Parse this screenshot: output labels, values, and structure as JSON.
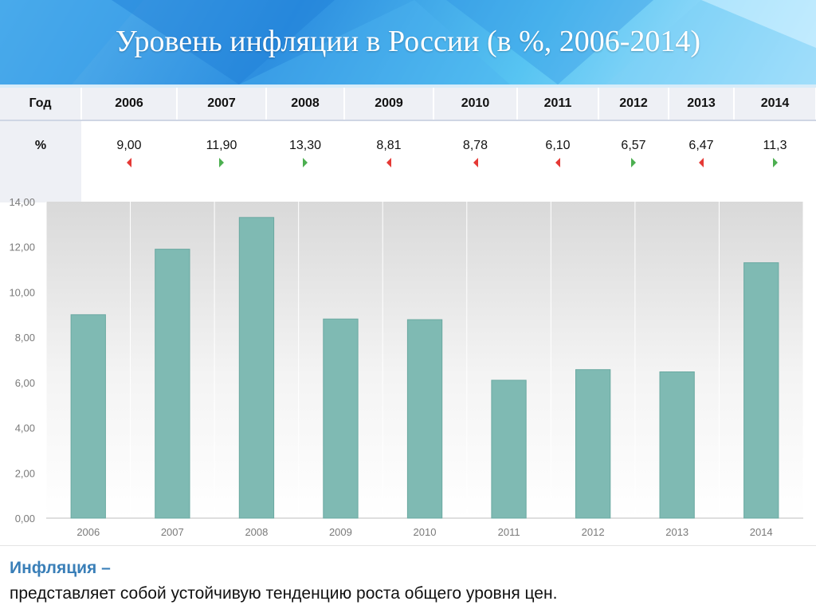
{
  "slide": {
    "title": "Уровень инфляции в России (в %, 2006-2014)"
  },
  "table": {
    "year_header": "Год",
    "percent_header": "%",
    "years": [
      "2006",
      "2007",
      "2008",
      "2009",
      "2010",
      "2011",
      "2012",
      "2013",
      "2014"
    ],
    "values": [
      "9,00",
      "11,90",
      "13,30",
      "8,81",
      "8,78",
      "6,10",
      "6,57",
      "6,47",
      "11,3"
    ],
    "trends": [
      "down",
      "up",
      "up",
      "down",
      "down",
      "down",
      "up",
      "down",
      "up"
    ]
  },
  "colors": {
    "bar": "#7fbab3",
    "bar_stroke": "#6aa9a1",
    "trend_up": "#4caf50",
    "trend_down": "#e53935",
    "term": "#3a7fb8"
  },
  "chart_data": {
    "type": "bar",
    "categories": [
      "2006",
      "2007",
      "2008",
      "2009",
      "2010",
      "2011",
      "2012",
      "2013",
      "2014"
    ],
    "values": [
      9.0,
      11.9,
      13.3,
      8.81,
      8.78,
      6.1,
      6.57,
      6.47,
      11.3
    ],
    "ylim": [
      0,
      14
    ],
    "y_ticks": [
      0,
      2,
      4,
      6,
      8,
      10,
      12,
      14
    ],
    "y_tick_labels": [
      "0,00",
      "2,00",
      "4,00",
      "6,00",
      "8,00",
      "10,00",
      "12,00",
      "14,00"
    ],
    "grid": true,
    "legend": "none"
  },
  "footer": {
    "term": "Инфляция –",
    "definition": "представляет собой устойчивую тенденцию роста общего уровня цен."
  }
}
